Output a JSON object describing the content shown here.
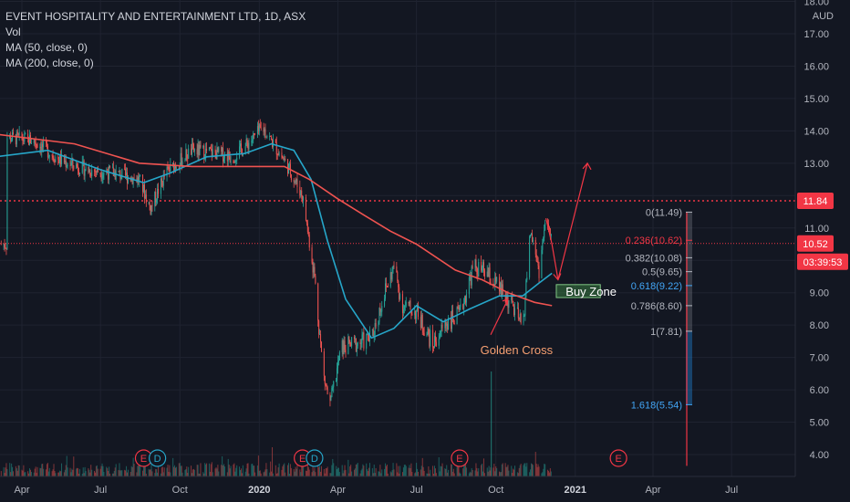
{
  "legend": {
    "title": "EVENT HOSPITALITY AND ENTERTAINMENT LTD, 1D, ASX",
    "vol": "Vol",
    "ma50": "MA (50, close, 0)",
    "ma200": "MA (200, close, 0)"
  },
  "price_axis": {
    "currency": "AUD",
    "ticks": [
      "18.00",
      "17.00",
      "16.00",
      "15.00",
      "14.00",
      "13.00",
      "12.00",
      "11.00",
      "10.00",
      "9.00",
      "8.00",
      "7.00",
      "6.00",
      "5.00",
      "4.00"
    ],
    "badges": [
      {
        "label": "11.84",
        "value": 11.84,
        "color": "#f23645"
      },
      {
        "label": "10.52",
        "value": 10.52,
        "color": "#f23645"
      },
      {
        "label": "03:39:53",
        "value": 10.2,
        "color": "#f23645"
      }
    ]
  },
  "time_axis": {
    "ticks": [
      {
        "label": "Apr",
        "bold": false
      },
      {
        "label": "Jul",
        "bold": false
      },
      {
        "label": "Oct",
        "bold": false
      },
      {
        "label": "2020",
        "bold": true
      },
      {
        "label": "Apr",
        "bold": false
      },
      {
        "label": "Jul",
        "bold": false
      },
      {
        "label": "Oct",
        "bold": false
      },
      {
        "label": "2021",
        "bold": true
      },
      {
        "label": "Apr",
        "bold": false
      },
      {
        "label": "Jul",
        "bold": false
      }
    ]
  },
  "fib_levels": [
    {
      "label": "0(11.49)",
      "value": 11.49,
      "color": "#b2b5be"
    },
    {
      "label": "0.236(10.62)",
      "value": 10.62,
      "color": "#f23645"
    },
    {
      "label": "0.382(10.08)",
      "value": 10.08,
      "color": "#b2b5be"
    },
    {
      "label": "0.5(9.65)",
      "value": 9.65,
      "color": "#b2b5be"
    },
    {
      "label": "0.618(9.22)",
      "value": 9.22,
      "color": "#42a5f5"
    },
    {
      "label": "0.786(8.60)",
      "value": 8.6,
      "color": "#b2b5be"
    },
    {
      "label": "1(7.81)",
      "value": 7.81,
      "color": "#b2b5be"
    },
    {
      "label": "1.618(5.54)",
      "value": 5.54,
      "color": "#42a5f5"
    }
  ],
  "annotations": {
    "buy_zone": "Buy Zone",
    "golden_cross": "Golden Cross",
    "earnings_marker": "E",
    "dividend_marker": "D"
  },
  "chart_data": {
    "type": "line",
    "title": "EVENT HOSPITALITY AND ENTERTAINMENT LTD, 1D, ASX",
    "ylim": [
      3.6,
      18.1
    ],
    "y_unit": "AUD",
    "grid": true,
    "series": [
      {
        "name": "close",
        "color": "#d1d4dc",
        "x": [
          "2019-03-15",
          "2019-04-15",
          "2019-05-15",
          "2019-06-15",
          "2019-07-15",
          "2019-08-15",
          "2019-08-28",
          "2019-09-15",
          "2019-10-15",
          "2019-11-15",
          "2019-12-01",
          "2019-12-15",
          "2020-01-05",
          "2020-02-01",
          "2020-02-20",
          "2020-03-05",
          "2020-03-15",
          "2020-03-23",
          "2020-04-05",
          "2020-04-20",
          "2020-05-10",
          "2020-05-25",
          "2020-06-05",
          "2020-06-15",
          "2020-07-01",
          "2020-07-20",
          "2020-08-05",
          "2020-08-20",
          "2020-09-05",
          "2020-09-20",
          "2020-10-05",
          "2020-10-20",
          "2020-11-01",
          "2020-11-10",
          "2020-11-20",
          "2020-11-28",
          "2020-12-05"
        ],
        "y": [
          13.8,
          13.7,
          13.1,
          12.8,
          12.7,
          12.5,
          11.6,
          12.7,
          13.4,
          13.3,
          13.2,
          13.5,
          14.1,
          13.0,
          12.0,
          9.5,
          6.5,
          5.5,
          7.3,
          7.4,
          7.6,
          9.0,
          9.8,
          8.6,
          8.4,
          7.4,
          8.1,
          8.3,
          9.8,
          9.6,
          9.1,
          8.6,
          7.9,
          10.9,
          9.7,
          11.3,
          10.5
        ]
      },
      {
        "name": "MA (50, close, 0)",
        "color": "#26a6c9",
        "x": [
          "2019-03-01",
          "2019-05-01",
          "2019-07-01",
          "2019-08-20",
          "2019-09-20",
          "2019-11-01",
          "2019-12-15",
          "2020-01-15",
          "2020-02-10",
          "2020-03-01",
          "2020-03-20",
          "2020-04-10",
          "2020-05-10",
          "2020-06-05",
          "2020-07-01",
          "2020-08-01",
          "2020-09-01",
          "2020-10-05",
          "2020-11-01",
          "2020-11-20",
          "2020-12-05"
        ],
        "y": [
          13.2,
          13.4,
          12.8,
          12.4,
          12.7,
          13.2,
          13.3,
          13.6,
          13.4,
          12.5,
          10.6,
          8.8,
          7.6,
          7.9,
          8.6,
          8.1,
          8.5,
          8.9,
          8.9,
          9.3,
          9.6
        ]
      },
      {
        "name": "MA (200, close, 0)",
        "color": "#ef5350",
        "x": [
          "2019-03-01",
          "2019-06-01",
          "2019-08-15",
          "2019-10-15",
          "2019-12-15",
          "2020-01-30",
          "2020-02-28",
          "2020-04-01",
          "2020-05-01",
          "2020-06-01",
          "2020-07-01",
          "2020-08-15",
          "2020-09-15",
          "2020-10-15",
          "2020-11-15",
          "2020-12-05"
        ],
        "y": [
          13.9,
          13.6,
          13.0,
          12.9,
          12.9,
          12.9,
          12.5,
          11.9,
          11.4,
          10.9,
          10.5,
          9.7,
          9.4,
          9.0,
          8.7,
          8.6
        ]
      }
    ],
    "horizontal_lines": [
      {
        "value": 11.84,
        "style": "dotted",
        "color": "#f23645"
      },
      {
        "value": 10.52,
        "style": "dotted",
        "color": "#f23645"
      }
    ],
    "projection": {
      "x": [
        "2020-11-28",
        "2020-12-05",
        "2020-12-12",
        "2021-01-15"
      ],
      "y": [
        11.3,
        10.5,
        9.4,
        13.0
      ],
      "color": "#f23645"
    },
    "buy_zone": {
      "x_start": "2020-12-10",
      "x_end": "2021-01-30",
      "y_low": 8.85,
      "y_high": 9.25
    },
    "events": [
      {
        "type": "E",
        "date": "2019-08-20"
      },
      {
        "type": "D",
        "date": "2019-09-05"
      },
      {
        "type": "E",
        "date": "2020-02-20"
      },
      {
        "type": "D",
        "date": "2020-03-05"
      },
      {
        "type": "E",
        "date": "2020-08-20"
      },
      {
        "type": "E",
        "date": "2021-02-20"
      }
    ]
  }
}
